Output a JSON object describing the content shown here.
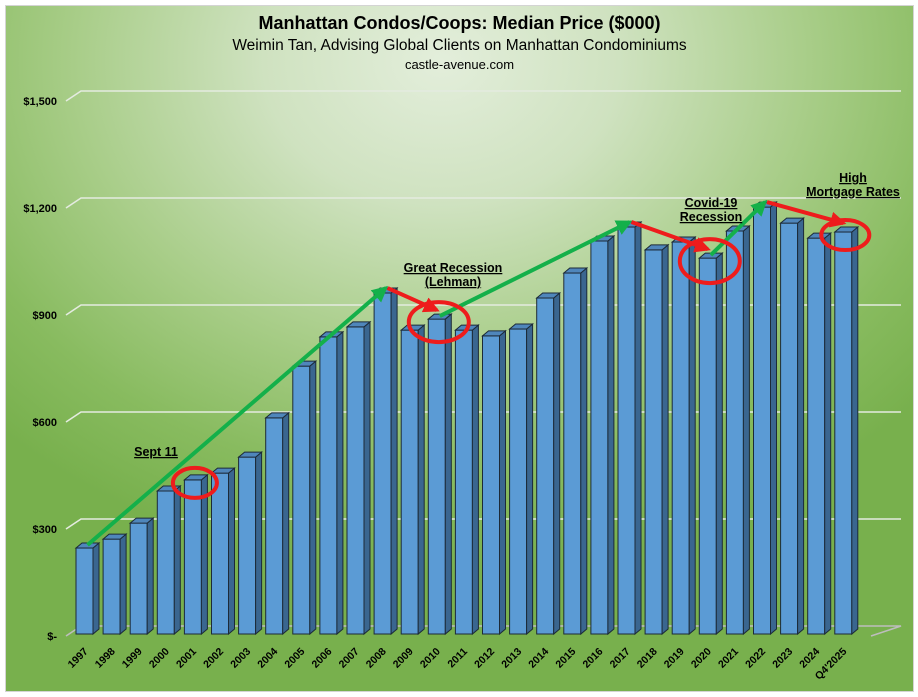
{
  "header": {
    "title": "Manhattan Condos/Coops: Median Price ($000)",
    "subtitle": "Weimin Tan, Advising Global Clients on Manhattan Condominiums",
    "site": "castle-avenue.com"
  },
  "chart_data": {
    "type": "bar",
    "style": "3d-column",
    "title": "Manhattan Condos/Coops: Median Price ($000)",
    "subtitle": "Weimin Tan, Advising Global Clients on Manhattan Condominiums",
    "xlabel": "",
    "ylabel": "",
    "ylim": [
      0,
      1500
    ],
    "grid": true,
    "yticks": [
      0,
      300,
      600,
      900,
      1200,
      1500
    ],
    "ytick_labels": [
      "$-",
      "$300",
      "$600",
      "$900",
      "$1,200",
      "$1,500"
    ],
    "categories": [
      "1997",
      "1998",
      "1999",
      "2000",
      "2001",
      "2002",
      "2003",
      "2004",
      "2005",
      "2006",
      "2007",
      "2008",
      "2009",
      "2010",
      "2011",
      "2012",
      "2013",
      "2014",
      "2015",
      "2016",
      "2017",
      "2018",
      "2019",
      "2020",
      "2021",
      "2022",
      "2023",
      "2024",
      "Q4'2025"
    ],
    "values": [
      241,
      266,
      311,
      401,
      432,
      451,
      496,
      606,
      751,
      833,
      861,
      956,
      852,
      883,
      852,
      836,
      855,
      942,
      1012,
      1102,
      1141,
      1077,
      1099,
      1054,
      1130,
      1197,
      1152,
      1110,
      1127
    ],
    "colors": {
      "bar_front": "#5b9bd5",
      "bar_side": "#3a6690",
      "bar_top": "#4f86bb",
      "outline": "#1c2a38",
      "up_arrow": "#14b04a",
      "down_arrow": "#ee1c1c",
      "circle": "#ee1c1c"
    },
    "trend_arrows": [
      {
        "from": "1997",
        "to": "2008",
        "direction": "up"
      },
      {
        "from": "2008",
        "to": "2010",
        "direction": "down"
      },
      {
        "from": "2010",
        "to": "2017",
        "direction": "up"
      },
      {
        "from": "2017",
        "to": "2020",
        "direction": "down"
      },
      {
        "from": "2020",
        "to": "2022",
        "direction": "up"
      },
      {
        "from": "2022",
        "to": "Q4'2025",
        "direction": "down"
      }
    ],
    "highlighted": [
      "2001",
      "2010",
      "2020",
      "Q4'2025"
    ],
    "annotations": [
      {
        "lines": [
          "Sept 11"
        ],
        "category": "2001"
      },
      {
        "lines": [
          "Great Recession",
          "(Lehman)"
        ],
        "category": "2010"
      },
      {
        "lines": [
          "Covid-19",
          "Recession"
        ],
        "category": "2020"
      },
      {
        "lines": [
          "High",
          "Mortgage Rates"
        ],
        "category": "Q4'2025"
      }
    ]
  }
}
